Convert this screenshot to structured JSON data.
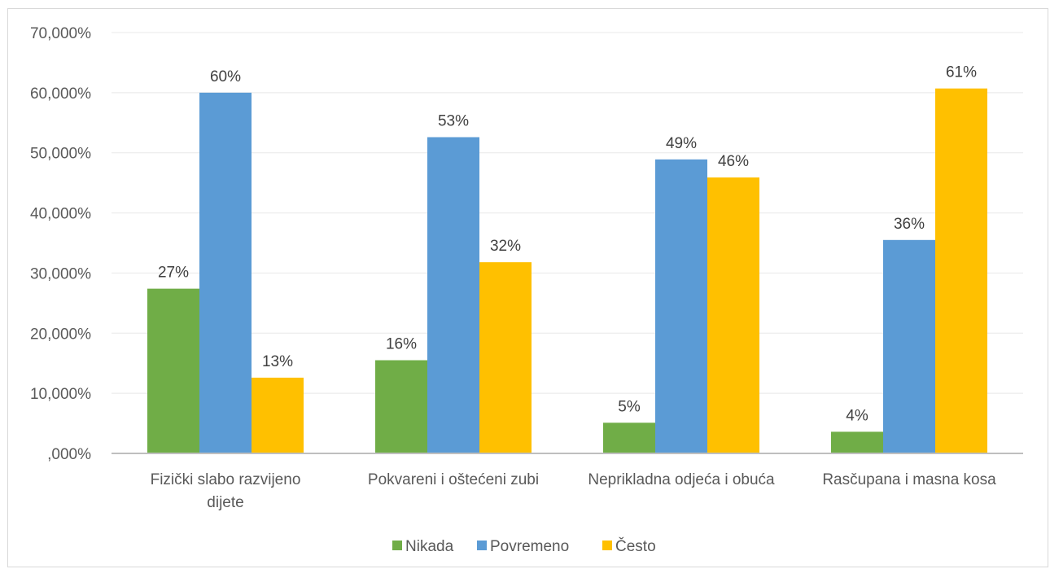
{
  "chart_data": {
    "type": "bar",
    "categories": [
      [
        "Fizički slabo razvijeno",
        "dijete"
      ],
      [
        "Pokvareni i oštećeni zubi"
      ],
      [
        "Neprikladna odjeća i obuća"
      ],
      [
        "Rasčupana i masna kosa"
      ]
    ],
    "series": [
      {
        "name": "Nikada",
        "color": "#70ad47",
        "values": [
          27.4,
          15.5,
          5.1,
          3.6
        ],
        "labels": [
          "27%",
          "16%",
          "5%",
          "4%"
        ]
      },
      {
        "name": "Povremeno",
        "color": "#5b9bd5",
        "values": [
          60.0,
          52.6,
          48.9,
          35.5
        ],
        "labels": [
          "60%",
          "53%",
          "49%",
          "36%"
        ]
      },
      {
        "name": "Često",
        "color": "#ffc000",
        "values": [
          12.6,
          31.8,
          45.9,
          60.7
        ],
        "labels": [
          "13%",
          "32%",
          "46%",
          "61%"
        ]
      }
    ],
    "ylim": [
      0,
      70
    ],
    "yticks": [
      0,
      10,
      20,
      30,
      40,
      50,
      60,
      70
    ],
    "ytick_labels": [
      ",000%",
      "10,000%",
      "20,000%",
      "30,000%",
      "40,000%",
      "50,000%",
      "60,000%",
      "70,000%"
    ],
    "grid": true,
    "legend_position": "bottom"
  }
}
